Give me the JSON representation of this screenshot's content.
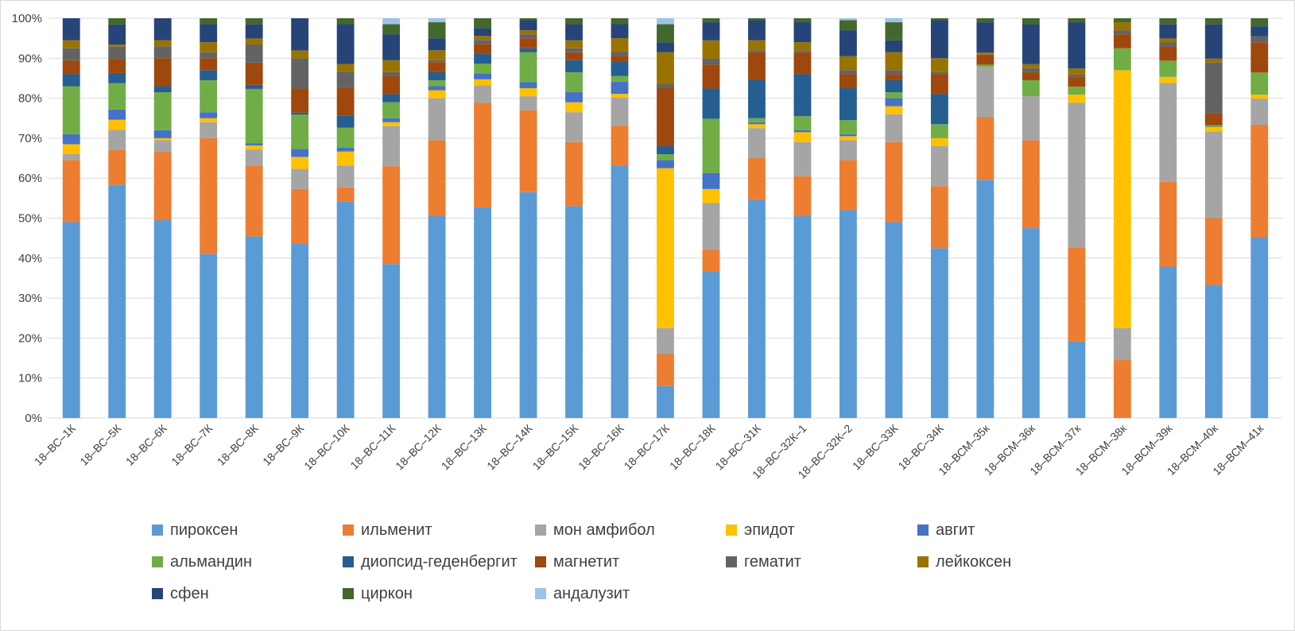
{
  "chart_data": {
    "type": "bar",
    "stacked": true,
    "percent": true,
    "categories": [
      "18–ВС–1К",
      "18–ВС–5К",
      "18–ВС–6К",
      "18–ВС–7К",
      "18–ВС–8К",
      "18–ВС–9К",
      "18–ВС–10К",
      "18–ВС–11К",
      "18–ВС–12К",
      "18–ВС–13К",
      "18–ВС–14К",
      "18–ВС–15К",
      "18–ВС–16К",
      "18–ВС–17К",
      "18–ВС–18К",
      "18–ВС–31К",
      "18–ВС–32К–1",
      "18–ВС–32К–2",
      "18–ВС–33К",
      "18–ВС–34К",
      "18–ВСМ–35к",
      "18–ВСМ–36к",
      "18–ВСМ–37к",
      "18–ВСМ–38к",
      "18–ВСМ–39к",
      "18–ВСМ–40к",
      "18–ВСМ–41к"
    ],
    "ylim": [
      0,
      100
    ],
    "y_ticks": [
      "0%",
      "10%",
      "20%",
      "30%",
      "40%",
      "50%",
      "60%",
      "70%",
      "80%",
      "90%",
      "100%"
    ],
    "grid": true,
    "legend_position": "bottom",
    "series": [
      {
        "name": "пироксен",
        "color": "#5B9BD5",
        "values": [
          49,
          57.5,
          49.5,
          41,
          45,
          43.5,
          54.5,
          38.5,
          50.5,
          53.5,
          56.5,
          53,
          63.5,
          8,
          36.5,
          54.5,
          50.5,
          52,
          49,
          42.5,
          59,
          47.5,
          19,
          0,
          37.5,
          33,
          45
        ]
      },
      {
        "name": "ильменит",
        "color": "#ED7D31",
        "values": [
          15.5,
          8.5,
          17,
          29,
          17.5,
          13.5,
          3.5,
          24.5,
          19,
          26.5,
          20.5,
          16,
          10,
          8,
          5.5,
          10.5,
          10,
          12.5,
          20,
          15.5,
          15.5,
          22,
          23.5,
          14.5,
          21,
          16.5,
          28
        ]
      },
      {
        "name": "мон амфибол",
        "color": "#A5A5A5",
        "values": [
          1.5,
          5,
          3,
          4,
          4,
          5,
          5.5,
          10,
          10.5,
          4.5,
          3.5,
          7.5,
          7,
          6.5,
          11.5,
          7.5,
          8.5,
          5,
          7,
          10,
          12.5,
          11,
          36,
          8,
          24.5,
          21.5,
          6.5
        ]
      },
      {
        "name": "эпидот",
        "color": "#FFC000",
        "values": [
          2.5,
          2.5,
          0.5,
          1,
          1,
          3,
          3.5,
          1,
          2,
          1.5,
          2,
          2.5,
          1,
          40,
          3.5,
          1,
          2.5,
          1,
          2,
          2,
          0,
          0,
          2,
          64.5,
          1.5,
          1,
          1
        ]
      },
      {
        "name": "авгит",
        "color": "#4472C4",
        "values": [
          2.5,
          2.5,
          2,
          1.5,
          0.5,
          2,
          1,
          1,
          1,
          1.5,
          1.5,
          2.5,
          3,
          2,
          4,
          0.5,
          0.5,
          0.5,
          2,
          0,
          0,
          0,
          0,
          0,
          0,
          0,
          0
        ]
      },
      {
        "name": "альмандин",
        "color": "#70AD47",
        "values": [
          12,
          6.5,
          9.5,
          8,
          13.5,
          8.5,
          5,
          4,
          1.5,
          2.5,
          7.5,
          5,
          1.5,
          1.5,
          13.5,
          1,
          3.5,
          3.5,
          1.5,
          3.5,
          0.5,
          4,
          2,
          5.5,
          4,
          0.5,
          5.5
        ]
      },
      {
        "name": "диопсид-геденбергит",
        "color": "#255E91",
        "values": [
          3,
          2.5,
          1.5,
          2.5,
          1,
          0.5,
          3,
          2,
          2,
          2.5,
          1,
          3,
          3.5,
          2,
          7.5,
          9.5,
          10.5,
          8,
          3,
          7.5,
          0,
          0,
          0,
          0,
          0,
          0,
          0
        ]
      },
      {
        "name": "магнетит",
        "color": "#9E480E",
        "values": [
          3.5,
          3.5,
          7,
          3,
          5.5,
          6,
          7,
          4.5,
          2.5,
          2.5,
          2.5,
          2,
          1.5,
          14.5,
          6,
          7,
          5.5,
          3.5,
          1.5,
          5,
          2.5,
          2,
          2.5,
          3.5,
          3.5,
          3,
          7.5
        ]
      },
      {
        "name": "гематит",
        "color": "#636363",
        "values": [
          3,
          3,
          3,
          1.5,
          4.5,
          7.5,
          4,
          1,
          0.5,
          1,
          1,
          1,
          1,
          1,
          1.5,
          0.5,
          0.5,
          1,
          1,
          0.5,
          0,
          1,
          0.5,
          1,
          1,
          12.5,
          1.5
        ]
      },
      {
        "name": "лейкоксен",
        "color": "#997300",
        "values": [
          2,
          0.5,
          1.5,
          2.5,
          1.5,
          2,
          2,
          3,
          2.5,
          1,
          1,
          2,
          3.5,
          8,
          4.5,
          2.5,
          2,
          3.5,
          4.5,
          3.5,
          0.5,
          1,
          1.5,
          2,
          1,
          1,
          0
        ]
      },
      {
        "name": "сфен",
        "color": "#264478",
        "values": [
          5.5,
          5,
          5.5,
          4.5,
          3.5,
          8,
          10,
          6.5,
          3,
          2,
          2.5,
          4,
          3.5,
          2.5,
          4.5,
          5,
          5,
          6.5,
          3,
          9.5,
          7.5,
          10,
          11.5,
          0,
          3.5,
          8.5,
          2.5
        ]
      },
      {
        "name": "циркон",
        "color": "#43682B",
        "values": [
          0,
          1.5,
          0,
          1.5,
          1.5,
          0,
          1.5,
          2.5,
          4,
          2.5,
          0.5,
          1.5,
          1.5,
          4.5,
          1,
          0.5,
          1,
          2.5,
          4.5,
          0.5,
          1,
          1.5,
          1,
          1,
          1.5,
          1.5,
          2
        ]
      },
      {
        "name": "андалузит",
        "color": "#9DC3E6",
        "values": [
          0,
          0,
          0,
          0,
          0,
          0,
          0,
          1.5,
          1,
          0,
          0,
          0,
          0,
          1.5,
          0,
          0,
          0,
          0.5,
          1,
          0,
          0,
          0,
          0,
          0,
          0,
          0,
          0
        ]
      }
    ]
  }
}
